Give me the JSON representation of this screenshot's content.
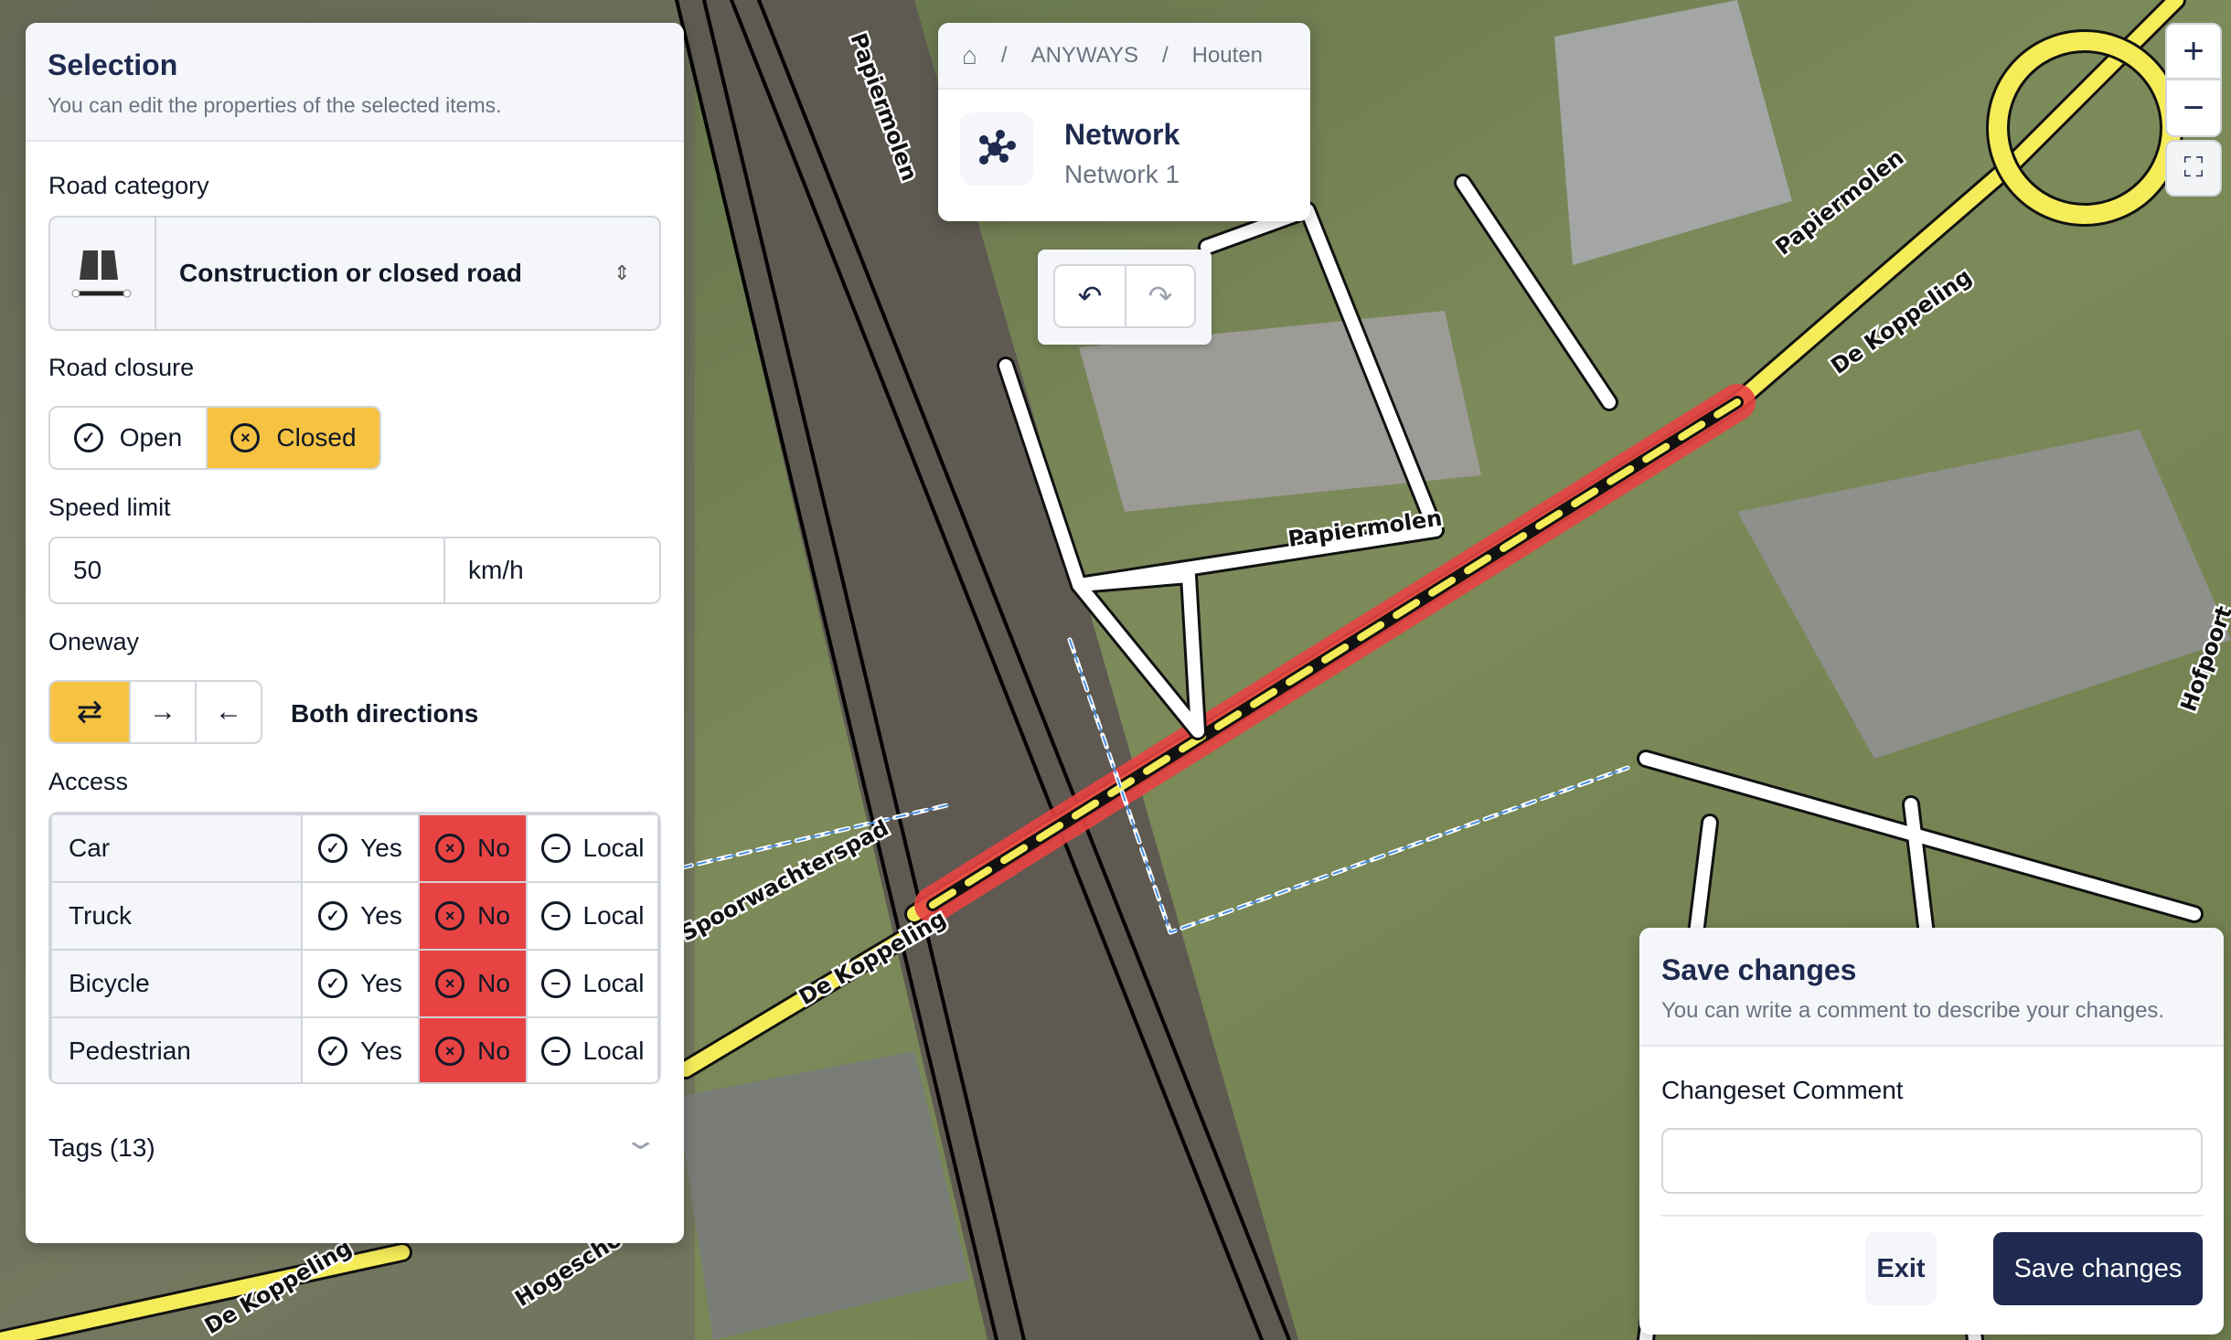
{
  "map": {
    "labels": [
      "Papiermolen",
      "Papiermolen",
      "Papiermolen",
      "De Koppeling",
      "De Koppeling",
      "De Koppeling",
      "Spoorwachterspad",
      "Hogeschool",
      "Hofpoort"
    ]
  },
  "selection": {
    "title": "Selection",
    "subtitle": "You can edit the properties of the selected items.",
    "road_category": {
      "label": "Road category",
      "value": "Construction or closed road",
      "icon": "closed-road-icon"
    },
    "road_closure": {
      "label": "Road closure",
      "options": [
        "Open",
        "Closed"
      ],
      "selected": "Closed"
    },
    "speed_limit": {
      "label": "Speed limit",
      "value": "50",
      "unit": "km/h"
    },
    "oneway": {
      "label": "Oneway",
      "selected": "both",
      "value_label": "Both directions"
    },
    "access": {
      "label": "Access",
      "options": [
        "Yes",
        "No",
        "Local"
      ],
      "rows": [
        {
          "mode": "Car",
          "value": "No"
        },
        {
          "mode": "Truck",
          "value": "No"
        },
        {
          "mode": "Bicycle",
          "value": "No"
        },
        {
          "mode": "Pedestrian",
          "value": "No"
        }
      ]
    },
    "tags": {
      "label": "Tags (13)"
    }
  },
  "breadcrumb": {
    "items": [
      "ANYWAYS",
      "Houten"
    ],
    "title": "Network",
    "subtitle": "Network 1"
  },
  "save": {
    "title": "Save changes",
    "subtitle": "You can write a comment to describe your changes.",
    "comment_label": "Changeset Comment",
    "comment_value": "",
    "exit": "Exit",
    "save": "Save changes"
  },
  "colors": {
    "accent": "#f5c242",
    "danger": "#e84343",
    "primary": "#1e2a4f"
  }
}
